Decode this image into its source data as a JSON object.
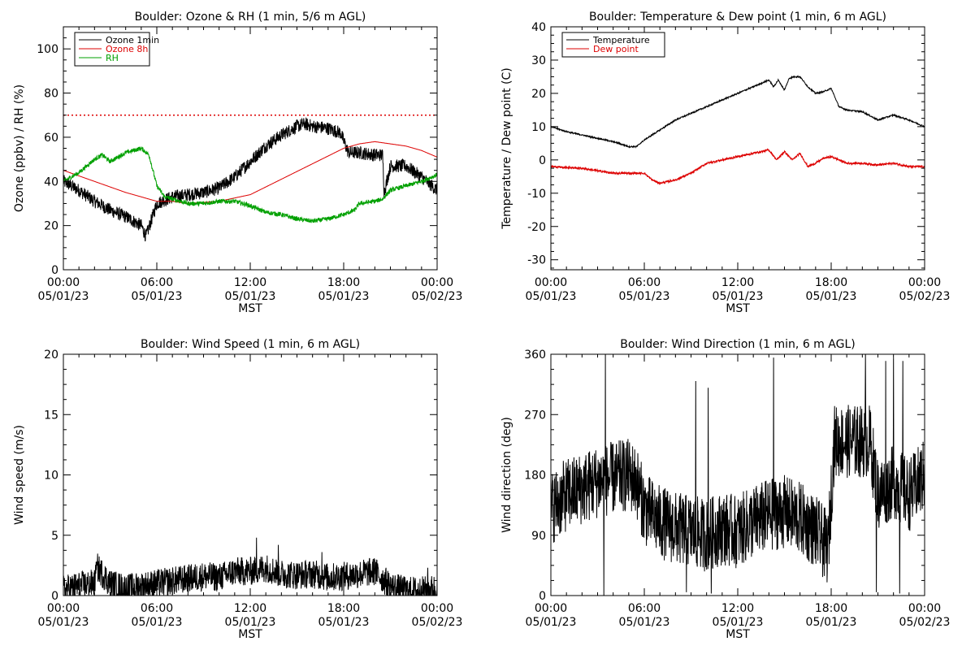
{
  "figure": {
    "background": "#ffffff"
  },
  "chart_data": [
    {
      "type": "line",
      "title": "Boulder: Ozone & RH (1 min, 5/6 m AGL)",
      "xlabel": "MST",
      "ylabel": "Ozone (ppbv) / RH (%)",
      "xlim": [
        0,
        24
      ],
      "ylim": [
        0,
        110
      ],
      "x_ticks": [
        {
          "x": 0,
          "time": "00:00",
          "date": "05/01/23"
        },
        {
          "x": 6,
          "time": "06:00",
          "date": "05/01/23"
        },
        {
          "x": 12,
          "time": "12:00",
          "date": "05/01/23"
        },
        {
          "x": 18,
          "time": "18:00",
          "date": "05/01/23"
        },
        {
          "x": 24,
          "time": "00:00",
          "date": "05/02/23"
        }
      ],
      "y_ticks": [
        0,
        20,
        40,
        60,
        80,
        100
      ],
      "legend": {
        "position": "top-left",
        "boxed": true
      },
      "reference_line": {
        "y": 70,
        "color": "#dd0000",
        "style": "dotted"
      },
      "series": [
        {
          "name": "Ozone 1min",
          "color": "#000000",
          "noise": 3,
          "x": [
            0,
            1,
            2,
            3,
            4,
            5,
            5.3,
            6,
            7,
            8,
            9,
            10,
            11,
            12,
            13,
            14,
            14.5,
            15,
            15.5,
            16,
            17,
            17.8,
            18.3,
            19,
            20,
            20.5,
            20.6,
            21,
            22,
            23,
            24
          ],
          "values": [
            40,
            36,
            31,
            27,
            24,
            20,
            15,
            30,
            33,
            34,
            35,
            37,
            42,
            49,
            56,
            61,
            63,
            65,
            66,
            65,
            64,
            62,
            53,
            53,
            52,
            52,
            35,
            47,
            47,
            42,
            36
          ]
        },
        {
          "name": "Ozone 8h",
          "color": "#dd0000",
          "noise": 0,
          "x": [
            0,
            2,
            4,
            6,
            7,
            8,
            10,
            12,
            14,
            16,
            18,
            19,
            20,
            21,
            22,
            23,
            24
          ],
          "values": [
            45,
            40,
            35,
            31,
            31,
            30,
            31,
            34,
            41,
            48,
            55,
            57,
            58,
            57,
            56,
            54,
            51
          ]
        },
        {
          "name": "RH",
          "color": "#00a000",
          "noise": 1,
          "x": [
            0,
            1,
            2,
            2.5,
            3,
            4,
            5,
            5.5,
            6,
            6.5,
            7,
            8,
            9,
            10,
            11,
            12,
            13,
            14,
            15,
            16,
            17,
            18,
            18.7,
            19,
            20,
            20.5,
            21,
            22,
            23,
            24
          ],
          "values": [
            40,
            44,
            50,
            52,
            49,
            53,
            55,
            52,
            38,
            33,
            32,
            30,
            30,
            31,
            31,
            29,
            26,
            25,
            23,
            22,
            23,
            25,
            27,
            30,
            31,
            32,
            36,
            38,
            40,
            43
          ]
        }
      ]
    },
    {
      "type": "line",
      "title": "Boulder: Temperature & Dew point (1 min, 6 m AGL)",
      "xlabel": "MST",
      "ylabel": "Temperature / Dew point (C)",
      "xlim": [
        0,
        24
      ],
      "ylim": [
        -33,
        40
      ],
      "x_ticks": [
        {
          "x": 0,
          "time": "00:00",
          "date": "05/01/23"
        },
        {
          "x": 6,
          "time": "06:00",
          "date": "05/01/23"
        },
        {
          "x": 12,
          "time": "12:00",
          "date": "05/01/23"
        },
        {
          "x": 18,
          "time": "18:00",
          "date": "05/01/23"
        },
        {
          "x": 24,
          "time": "00:00",
          "date": "05/02/23"
        }
      ],
      "y_ticks": [
        -30,
        -20,
        -10,
        0,
        10,
        20,
        30,
        40
      ],
      "legend": {
        "position": "top-left",
        "boxed": true
      },
      "series": [
        {
          "name": "Temperature",
          "color": "#000000",
          "noise": 0.2,
          "x": [
            0,
            1,
            2,
            3,
            4,
            5,
            5.5,
            6,
            7,
            8,
            9,
            10,
            11,
            12,
            13,
            13.5,
            14,
            14.3,
            14.6,
            15,
            15.3,
            15.6,
            16,
            16.5,
            17,
            17.5,
            18,
            18.5,
            19,
            20,
            21,
            22,
            23,
            24
          ],
          "values": [
            10,
            8.5,
            7.5,
            6.5,
            5.5,
            4,
            4,
            6,
            9,
            12,
            14,
            16,
            18,
            20,
            22,
            23,
            24,
            22,
            24,
            21,
            24.5,
            25,
            25,
            22,
            20,
            20.5,
            21.5,
            16,
            15,
            14.5,
            12,
            13.5,
            12,
            10
          ]
        },
        {
          "name": "Dew point",
          "color": "#dd0000",
          "noise": 0.3,
          "x": [
            0,
            2,
            4,
            5,
            6,
            6.5,
            7,
            8,
            9,
            10,
            11,
            12,
            13,
            14,
            14.5,
            15,
            15.5,
            16,
            16.5,
            17,
            17.5,
            18,
            19,
            20,
            21,
            22,
            23,
            24
          ],
          "values": [
            -2,
            -2.5,
            -4,
            -4,
            -4,
            -6,
            -7,
            -6,
            -4,
            -1,
            0,
            1,
            2,
            3,
            0,
            2.5,
            0,
            2,
            -2,
            -1,
            0.5,
            1,
            -1,
            -1,
            -1.5,
            -1,
            -2,
            -2
          ]
        }
      ]
    },
    {
      "type": "line",
      "title": "Boulder: Wind Speed (1 min, 6 m AGL)",
      "xlabel": "MST",
      "ylabel": "Wind speed (m/s)",
      "xlim": [
        0,
        24
      ],
      "ylim": [
        0,
        20
      ],
      "x_ticks": [
        {
          "x": 0,
          "time": "00:00",
          "date": "05/01/23"
        },
        {
          "x": 6,
          "time": "06:00",
          "date": "05/01/23"
        },
        {
          "x": 12,
          "time": "12:00",
          "date": "05/01/23"
        },
        {
          "x": 18,
          "time": "18:00",
          "date": "05/01/23"
        },
        {
          "x": 24,
          "time": "00:00",
          "date": "05/02/23"
        }
      ],
      "y_ticks": [
        0,
        5,
        10,
        15,
        20
      ],
      "series": [
        {
          "color": "#000000",
          "noise": 1.2,
          "x": [
            0,
            1,
            2,
            2.2,
            3,
            4,
            5,
            6,
            7,
            8,
            9,
            10,
            11,
            12,
            13,
            14,
            15,
            16,
            17,
            18,
            19,
            20,
            21,
            22,
            23,
            24
          ],
          "values": [
            0.5,
            0.8,
            1,
            2.3,
            1,
            0.6,
            0.8,
            1,
            1.2,
            1.4,
            1.6,
            1.5,
            2,
            2,
            2.3,
            1.8,
            1.7,
            1.8,
            1.5,
            1.6,
            1.8,
            2,
            0.8,
            0.4,
            0.4,
            0.6
          ],
          "spikes": [
            [
              2.1,
              2.8
            ],
            [
              12.4,
              4.8
            ],
            [
              13.8,
              4.2
            ],
            [
              16.6,
              3.6
            ],
            [
              20.0,
              3.0
            ],
            [
              23.4,
              2.3
            ]
          ]
        }
      ]
    },
    {
      "type": "line",
      "title": "Boulder: Wind Direction (1 min, 6 m AGL)",
      "xlabel": "MST",
      "ylabel": "Wind direction (deg)",
      "xlim": [
        0,
        24
      ],
      "ylim": [
        0,
        360
      ],
      "x_ticks": [
        {
          "x": 0,
          "time": "00:00",
          "date": "05/01/23"
        },
        {
          "x": 6,
          "time": "06:00",
          "date": "05/01/23"
        },
        {
          "x": 12,
          "time": "12:00",
          "date": "05/01/23"
        },
        {
          "x": 18,
          "time": "18:00",
          "date": "05/01/23"
        },
        {
          "x": 24,
          "time": "00:00",
          "date": "05/02/23"
        }
      ],
      "y_ticks": [
        0,
        90,
        180,
        270,
        360
      ],
      "series": [
        {
          "color": "#000000",
          "noise": 55,
          "x": [
            0,
            1,
            2,
            3,
            4,
            5,
            5.5,
            6,
            7,
            8,
            9,
            10,
            11,
            12,
            13,
            14,
            15,
            16,
            17,
            17.8,
            18.2,
            19,
            20,
            20.5,
            21,
            22,
            23,
            24
          ],
          "values": [
            130,
            150,
            160,
            170,
            175,
            180,
            170,
            130,
            110,
            100,
            95,
            90,
            100,
            95,
            110,
            120,
            125,
            115,
            95,
            70,
            230,
            230,
            230,
            230,
            150,
            170,
            150,
            180
          ],
          "spikes": [
            [
              3.5,
              360
            ],
            [
              9.3,
              320
            ],
            [
              10.1,
              310
            ],
            [
              14.3,
              355
            ],
            [
              20.2,
              360
            ],
            [
              21.5,
              350
            ],
            [
              22.0,
              355
            ],
            [
              22.6,
              350
            ],
            [
              3.4,
              0
            ],
            [
              8.7,
              5
            ],
            [
              10.3,
              3
            ],
            [
              20.9,
              5
            ],
            [
              22.4,
              3
            ]
          ]
        }
      ]
    }
  ]
}
